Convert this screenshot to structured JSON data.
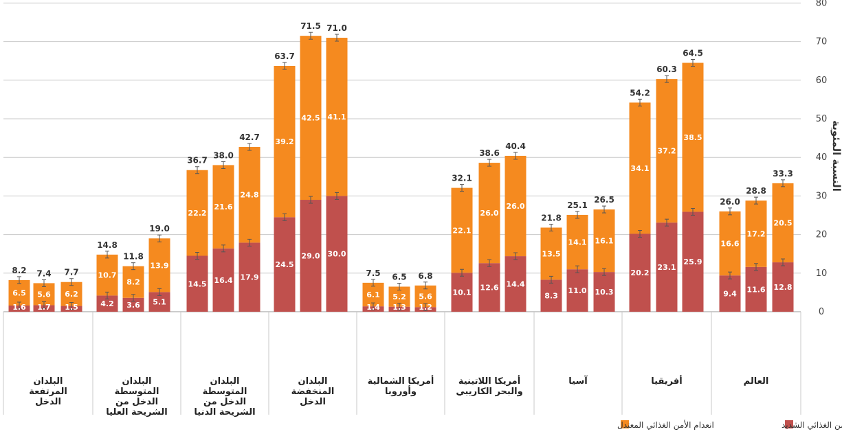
{
  "chart_data": {
    "type": "bar",
    "stacked": true,
    "error_bars": true,
    "ylabel": "النسبة المئوية",
    "ylim": [
      0,
      80
    ],
    "yticks": [
      0,
      10,
      20,
      30,
      40,
      50,
      60,
      70,
      80
    ],
    "grid": "horizontal",
    "legend_position": "bottom-right",
    "colors": {
      "severe": "#c0504d",
      "moderate": "#f58a1f",
      "grid": "#c8c8c8",
      "axis_text": "#444444"
    },
    "legend": [
      {
        "key": "severe",
        "label": "انعدام الأمن الغذائي الشديد"
      },
      {
        "key": "moderate",
        "label": "انعدام الأمن الغذائي المعتدل"
      }
    ],
    "groups": [
      {
        "label": [
          "البلدان",
          "المرتفعة",
          "الدخل"
        ],
        "bars": [
          {
            "severe": 1.6,
            "moderate": 6.5,
            "total": 8.2,
            "severe_label": "1.6"
          },
          {
            "severe": 1.7,
            "moderate": 5.6,
            "total": 7.4,
            "severe_label": "1.7"
          },
          {
            "severe": 1.5,
            "moderate": 6.2,
            "total": 7.7,
            "severe_label": "1.5"
          }
        ]
      },
      {
        "label": [
          "البلدان",
          "المتوسطة",
          "الدخل من",
          "الشريحة العليا"
        ],
        "bars": [
          {
            "severe": 4.2,
            "moderate": 10.7,
            "total": 14.8,
            "severe_label": "4.2"
          },
          {
            "severe": 3.6,
            "moderate": 8.2,
            "total": 11.8,
            "severe_label": "3.6"
          },
          {
            "severe": 5.1,
            "moderate": 13.9,
            "total": 19.0,
            "severe_label": "5.1"
          }
        ]
      },
      {
        "label": [
          "البلدان",
          "المتوسطة",
          "الدخل من",
          "الشريحة الدنيا"
        ],
        "bars": [
          {
            "severe": 14.5,
            "moderate": 22.2,
            "total": 36.7,
            "severe_label": "14.5"
          },
          {
            "severe": 16.4,
            "moderate": 21.6,
            "total": 38.0,
            "severe_label": "16.4"
          },
          {
            "severe": 17.9,
            "moderate": 24.8,
            "total": 42.7,
            "severe_label": "17.9"
          }
        ]
      },
      {
        "label": [
          "البلدان",
          "المنخفضة",
          "الدخل"
        ],
        "bars": [
          {
            "severe": 24.5,
            "moderate": 39.2,
            "total": 63.7,
            "severe_label": "24.5"
          },
          {
            "severe": 29.0,
            "moderate": 42.5,
            "total": 71.5,
            "severe_label": "29.0"
          },
          {
            "severe": 30.0,
            "moderate": 41.1,
            "total": 71.0,
            "severe_label": "30.0"
          }
        ]
      },
      {
        "label": [
          "أمريكا الشمالية",
          "وأوروبا"
        ],
        "bars": [
          {
            "severe": 1.4,
            "moderate": 6.1,
            "total": 7.5,
            "severe_label": "1.4"
          },
          {
            "severe": 1.3,
            "moderate": 5.2,
            "total": 6.5,
            "severe_label": "1.3"
          },
          {
            "severe": 1.2,
            "moderate": 5.6,
            "total": 6.8,
            "severe_label": "1.2"
          }
        ]
      },
      {
        "label": [
          "أمريكا اللاتينية",
          "والبحر الكاريبي"
        ],
        "bars": [
          {
            "severe": 10.1,
            "moderate": 22.1,
            "total": 32.1,
            "severe_label": "10.1"
          },
          {
            "severe": 12.6,
            "moderate": 26.0,
            "total": 38.6,
            "severe_label": "12.6"
          },
          {
            "severe": 14.4,
            "moderate": 26.0,
            "total": 40.4,
            "severe_label": "14.4"
          }
        ]
      },
      {
        "label": [
          "آسيا"
        ],
        "bars": [
          {
            "severe": 8.3,
            "moderate": 13.5,
            "total": 21.8,
            "severe_label": "8.3"
          },
          {
            "severe": 11.0,
            "moderate": 14.1,
            "total": 25.1,
            "severe_label": "11.0"
          },
          {
            "severe": 10.3,
            "moderate": 16.1,
            "total": 26.5,
            "severe_label": "10.3"
          }
        ]
      },
      {
        "label": [
          "أفريقيا"
        ],
        "bars": [
          {
            "severe": 20.2,
            "moderate": 34.1,
            "total": 54.2,
            "severe_label": "20.2"
          },
          {
            "severe": 23.1,
            "moderate": 37.2,
            "total": 60.3,
            "severe_label": "23.1"
          },
          {
            "severe": 25.9,
            "moderate": 38.5,
            "total": 64.5,
            "severe_label": "25.9"
          }
        ]
      },
      {
        "label": [
          "العالم"
        ],
        "bars": [
          {
            "severe": 9.4,
            "moderate": 16.6,
            "total": 26.0,
            "severe_label": "9.4"
          },
          {
            "severe": 11.6,
            "moderate": 17.2,
            "total": 28.8,
            "severe_label": "11.6"
          },
          {
            "severe": 12.8,
            "moderate": 20.5,
            "total": 33.3,
            "severe_label": "12.8"
          }
        ]
      }
    ]
  }
}
